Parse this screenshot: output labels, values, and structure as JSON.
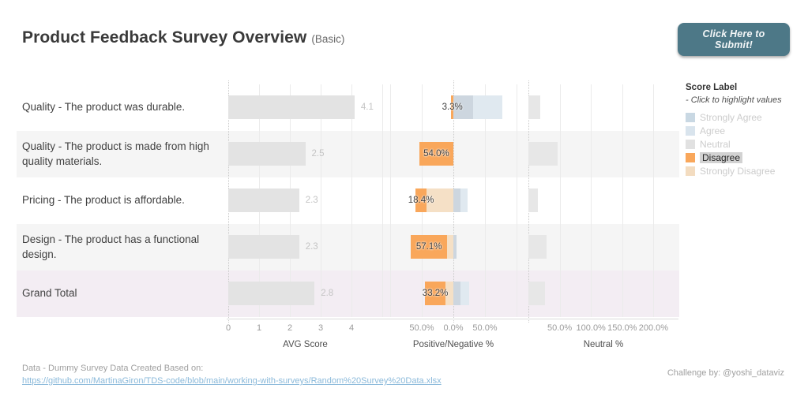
{
  "header": {
    "title": "Product Feedback Survey Overview",
    "subtitle": "(Basic)",
    "button_label": "Click Here to Submit!"
  },
  "legend": {
    "title": "Score Label",
    "subtitle": "- Click to highlight values",
    "items": [
      {
        "key": "strongly-agree",
        "label": "Strongly Agree",
        "color": "#c9d8e3",
        "state": "faded"
      },
      {
        "key": "agree",
        "label": "Agree",
        "color": "#d9e4ed",
        "state": "faded"
      },
      {
        "key": "neutral",
        "label": "Neutral",
        "color": "#e1e1e1",
        "state": "faded"
      },
      {
        "key": "disagree",
        "label": "Disagree",
        "color": "#f9a75b",
        "state": "selected"
      },
      {
        "key": "strongly-disagree",
        "label": "Strongly Disagree",
        "color": "#f3dcc0",
        "state": "faded"
      }
    ]
  },
  "footer": {
    "source_text": "Data - Dummy Survey Data Created Based on:",
    "source_link": "https://github.com/MartinaGiron/TDS-code/blob/main/working-with-surveys/Random%20Survey%20Data.xlsx",
    "credit": "Challenge by: @yoshi_dataviz"
  },
  "colors": {
    "button": "#4d7887",
    "avg_bar": "#e3e3e3",
    "neutral_bar": "#e7e7e7",
    "disagree": "#f9a75b",
    "strongly_disagree": "#f5e0c6",
    "strongly_agree_bar": "#cdd6df",
    "agree_bar": "#e0e9f0",
    "row_bands": [
      "#ffffff",
      "#f5f5f5",
      "#ffffff",
      "#f5f5f5",
      "#f3edf3"
    ],
    "gridline": "#ebebeb",
    "zero_line": "#c9c9c9"
  },
  "chart_data": {
    "type": "bar",
    "description": "Linked horizontal bar charts per survey question: average score, diverging positive/negative stacked %, and neutral %",
    "rows": [
      {
        "label": "Quality - The product was durable.",
        "avg_score": 4.1,
        "avg_label": "4.1",
        "disagree_label": "3.3%",
        "segments": {
          "disagree": 3.3,
          "strongly_disagree": 0,
          "strongly_agree": 31,
          "agree": 46
        },
        "neutral_pct": 19
      },
      {
        "label": "Quality - The product is made from high quality materials.",
        "avg_score": 2.5,
        "avg_label": "2.5",
        "disagree_label": "54.0%",
        "segments": {
          "disagree": 54.0,
          "strongly_disagree": 0,
          "strongly_agree": 0,
          "agree": 0
        },
        "neutral_pct": 47
      },
      {
        "label": "Pricing - The product is affordable.",
        "avg_score": 2.3,
        "avg_label": "2.3",
        "disagree_label": "18.4%",
        "segments": {
          "disagree": 18.4,
          "strongly_disagree": 42,
          "strongly_agree": 11,
          "agree": 11
        },
        "neutral_pct": 15
      },
      {
        "label": "Design - The product has a functional design.",
        "avg_score": 2.3,
        "avg_label": "2.3",
        "disagree_label": "57.1%",
        "segments": {
          "disagree": 57.1,
          "strongly_disagree": 10,
          "strongly_agree": 5,
          "agree": 0
        },
        "neutral_pct": 29
      },
      {
        "label": "Grand Total",
        "avg_score": 2.8,
        "avg_label": "2.8",
        "disagree_label": "33.2%",
        "segments": {
          "disagree": 33.2,
          "strongly_disagree": 12,
          "strongly_agree": 11,
          "agree": 14
        },
        "neutral_pct": 26
      }
    ],
    "axes": {
      "avg": {
        "title": "AVG Score",
        "ticks": [
          "0",
          "1",
          "2",
          "3",
          "4"
        ],
        "tick_values": [
          0,
          1,
          2,
          3,
          4
        ],
        "range": [
          0,
          5
        ]
      },
      "pos_neg": {
        "title": "Positive/Negative %",
        "ticks": [
          "50.0%",
          "0.0%",
          "50.0%"
        ],
        "tick_values": [
          -50,
          0,
          50
        ]
      },
      "neutral": {
        "title": "Neutral %",
        "ticks": [
          "50.0%",
          "100.0%",
          "150.0%",
          "200.0%"
        ],
        "tick_values": [
          50,
          100,
          150,
          200
        ]
      }
    },
    "legend_position": "right",
    "grid": true
  }
}
